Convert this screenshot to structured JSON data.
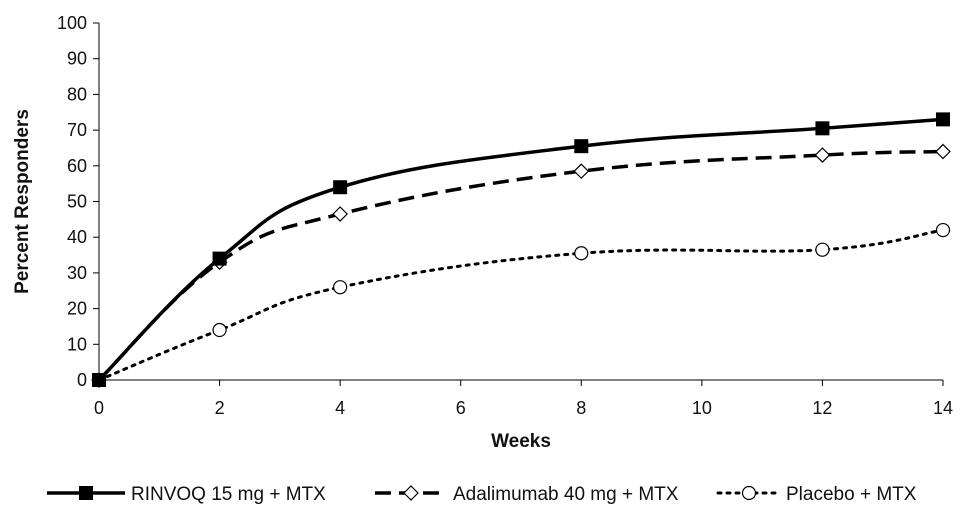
{
  "chart_data": {
    "type": "line",
    "title": "",
    "xlabel": "Weeks",
    "ylabel": "Percent Responders",
    "x": [
      0,
      2,
      4,
      8,
      12,
      14
    ],
    "xlim": [
      0,
      14
    ],
    "ylim": [
      0,
      100
    ],
    "x_ticks": [
      0,
      2,
      4,
      6,
      8,
      10,
      12,
      14
    ],
    "y_ticks": [
      0,
      10,
      20,
      30,
      40,
      50,
      60,
      70,
      80,
      90,
      100
    ],
    "grid": false,
    "legend_position": "bottom",
    "series": [
      {
        "name": "RINVOQ 15 mg + MTX",
        "values": [
          0,
          34,
          54,
          65.5,
          70.5,
          73
        ],
        "line_style": "solid",
        "marker": "filled-square",
        "color": "#000000"
      },
      {
        "name": "Adalimumab 40 mg + MTX",
        "values": [
          0,
          33,
          46.5,
          58.5,
          63,
          64
        ],
        "line_style": "dashed",
        "marker": "open-diamond",
        "color": "#000000"
      },
      {
        "name": "Placebo + MTX",
        "values": [
          0,
          14,
          26,
          35.5,
          36.5,
          42
        ],
        "line_style": "dotted",
        "marker": "open-circle",
        "color": "#000000"
      }
    ]
  }
}
